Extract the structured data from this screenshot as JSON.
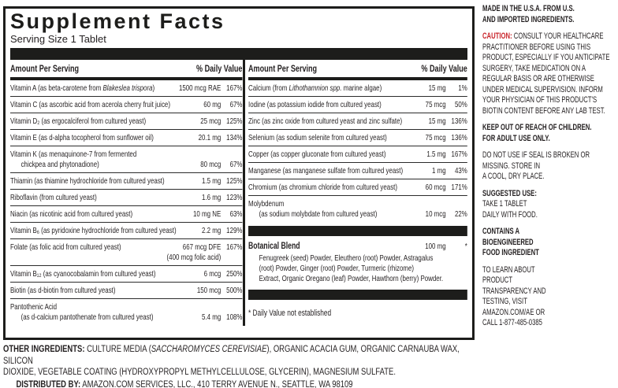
{
  "colors": {
    "ink": "#231f20",
    "bar": "#1d1d1b",
    "caution_red": "#c9252b"
  },
  "panel": {
    "title": "Supplement Facts",
    "serving_size": "Serving Size 1 Tablet",
    "col_header_amount": "Amount Per Serving",
    "col_header_dv": "% Daily Value",
    "left_rows": [
      {
        "pre": "Vitamin A (as beta-carotene from ",
        "it": "Blakeslea trispora",
        "post": ")",
        "amount": "1500 mcg RAE",
        "dv": "167%"
      },
      {
        "pre": "Vitamin C (as ascorbic acid from acerola cherry fruit juice)",
        "it": "",
        "post": "",
        "amount": "60 mg",
        "dv": "67%"
      },
      {
        "pre": "Vitamin D₂ (as ergocalciferol from cultured yeast)",
        "it": "",
        "post": "",
        "amount": "25 mcg",
        "dv": "125%"
      },
      {
        "pre": "Vitamin E (as d-alpha tocopherol from sunflower oil)",
        "it": "",
        "post": "",
        "amount": "20.1 mg",
        "dv": "134%"
      },
      {
        "line1": "Vitamin K (as menaquinone-7 from fermented",
        "line2": "chickpea and phytonadione)",
        "amount": "80 mcg",
        "dv": "67%"
      },
      {
        "pre": "Thiamin (as thiamine hydrochloride from cultured yeast)",
        "it": "",
        "post": "",
        "amount": "1.5 mg",
        "dv": "125%"
      },
      {
        "pre": "Riboflavin (from cultured yeast)",
        "it": "",
        "post": "",
        "amount": "1.6 mg",
        "dv": "123%"
      },
      {
        "pre": "Niacin (as nicotinic acid from cultured yeast)",
        "it": "",
        "post": "",
        "amount": "10 mg NE",
        "dv": "63%"
      },
      {
        "pre": "Vitamin B₆ (as pyridoxine hydrochloride from cultured yeast)",
        "it": "",
        "post": "",
        "amount": "2.2 mg",
        "dv": "129%"
      },
      {
        "pre": "Folate (as folic acid from cultured yeast)",
        "it": "",
        "post": "",
        "amount": "667 mcg DFE",
        "amount2": "(400 mcg folic acid)",
        "dv": "167%"
      },
      {
        "pre": "Vitamin B₁₂ (as cyanocobalamin from cultured yeast)",
        "it": "",
        "post": "",
        "amount": "6 mcg",
        "dv": "250%"
      },
      {
        "pre": "Biotin (as d-biotin from cultured yeast)",
        "it": "",
        "post": "",
        "amount": "150 mcg",
        "dv": "500%"
      },
      {
        "line1": "Pantothenic Acid",
        "line2": "(as d-calcium pantothenate from cultured yeast)",
        "amount": "5.4 mg",
        "dv": "108%"
      }
    ],
    "right_rows": [
      {
        "pre": "Calcium (from ",
        "it": "Lithothamnion spp.",
        "post": " marine algae)",
        "amount": "15 mg",
        "dv": "1%"
      },
      {
        "pre": "Iodine (as potassium iodide from cultured yeast)",
        "it": "",
        "post": "",
        "amount": "75 mcg",
        "dv": "50%"
      },
      {
        "pre": "Zinc (as zinc oxide from cultured yeast and zinc sulfate)",
        "it": "",
        "post": "",
        "amount": "15 mg",
        "dv": "136%"
      },
      {
        "pre": "Selenium (as sodium selenite from cultured yeast)",
        "it": "",
        "post": "",
        "amount": "75 mcg",
        "dv": "136%"
      },
      {
        "pre": "Copper (as copper gluconate from cultured yeast)",
        "it": "",
        "post": "",
        "amount": "1.5 mg",
        "dv": "167%"
      },
      {
        "pre": "Manganese (as manganese sulfate from cultured yeast)",
        "it": "",
        "post": "",
        "amount": "1 mg",
        "dv": "43%"
      },
      {
        "pre": "Chromium (as chromium chloride from cultured yeast)",
        "it": "",
        "post": "",
        "amount": "60 mcg",
        "dv": "171%"
      },
      {
        "line1": "Molybdenum",
        "line2": "(as sodium molybdate from cultured yeast)",
        "amount": "10 mcg",
        "dv": "22%"
      }
    ],
    "botanical": {
      "name": "Botanical Blend",
      "amount": "100 mg",
      "dv": "*",
      "desc": "Fenugreek (seed) Powder, Eleuthero (root) Powder, Astragalus\n(root) Powder, Ginger (root) Powder, Turmeric (rhizome)\nExtract, Organic Oregano (leaf) Powder, Hawthorn (berry) Powder."
    },
    "footnote": "* Daily Value not established"
  },
  "side": {
    "made_in": "MADE IN THE U.S.A. FROM U.S.\nAND IMPORTED INGREDIENTS.",
    "caution_label": "CAUTION:",
    "caution_text": " CONSULT YOUR HEALTHCARE\nPRACTITIONER BEFORE USING THIS\nPRODUCT, ESPECIALLY IF YOU ANTICIPATE\nSURGERY, TAKE MEDICATION ON A\nREGULAR BASIS OR ARE OTHERWISE\nUNDER MEDICAL SUPERVISION. INFORM\nYOUR PHYSICIAN OF THIS PRODUCT'S\nBIOTIN CONTENT BEFORE ANY LAB TEST.",
    "keep_out": "KEEP OUT OF REACH OF CHILDREN.\nFOR ADULT USE ONLY.",
    "do_not_use": "DO NOT USE IF SEAL IS BROKEN OR\nMISSING. STORE IN\nA COOL, DRY PLACE.",
    "suggested_label": "SUGGESTED USE:",
    "suggested_text": "TAKE 1 TABLET\nDAILY WITH FOOD.",
    "contains": "CONTAINS A\nBIOENGINEERED\nFOOD INGREDIENT",
    "learn": "TO LEARN ABOUT\nPRODUCT\nTRANSPARENCY AND\nTESTING, VISIT\nAMAZON.COM/AE OR\nCALL 1-877-485-0385"
  },
  "bottom": {
    "other_label": "OTHER INGREDIENTS:",
    "other_pre": " CULTURE MEDIA (",
    "other_italic": "SACCHAROMYCES CEREVISIAE",
    "other_post": "), ORGANIC ACACIA GUM, ORGANIC CARNAUBA WAX, SILICON\nDIOXIDE, VEGETABLE COATING (HYDROXYPROPYL METHYLCELLULOSE, GLYCERIN), MAGNESIUM SULFATE.",
    "dist_label": "DISTRIBUTED BY:",
    "dist_text": " AMAZON.COM SERVICES, LLC., 410 TERRY AVENUE N., SEATTLE, WA 98109"
  }
}
